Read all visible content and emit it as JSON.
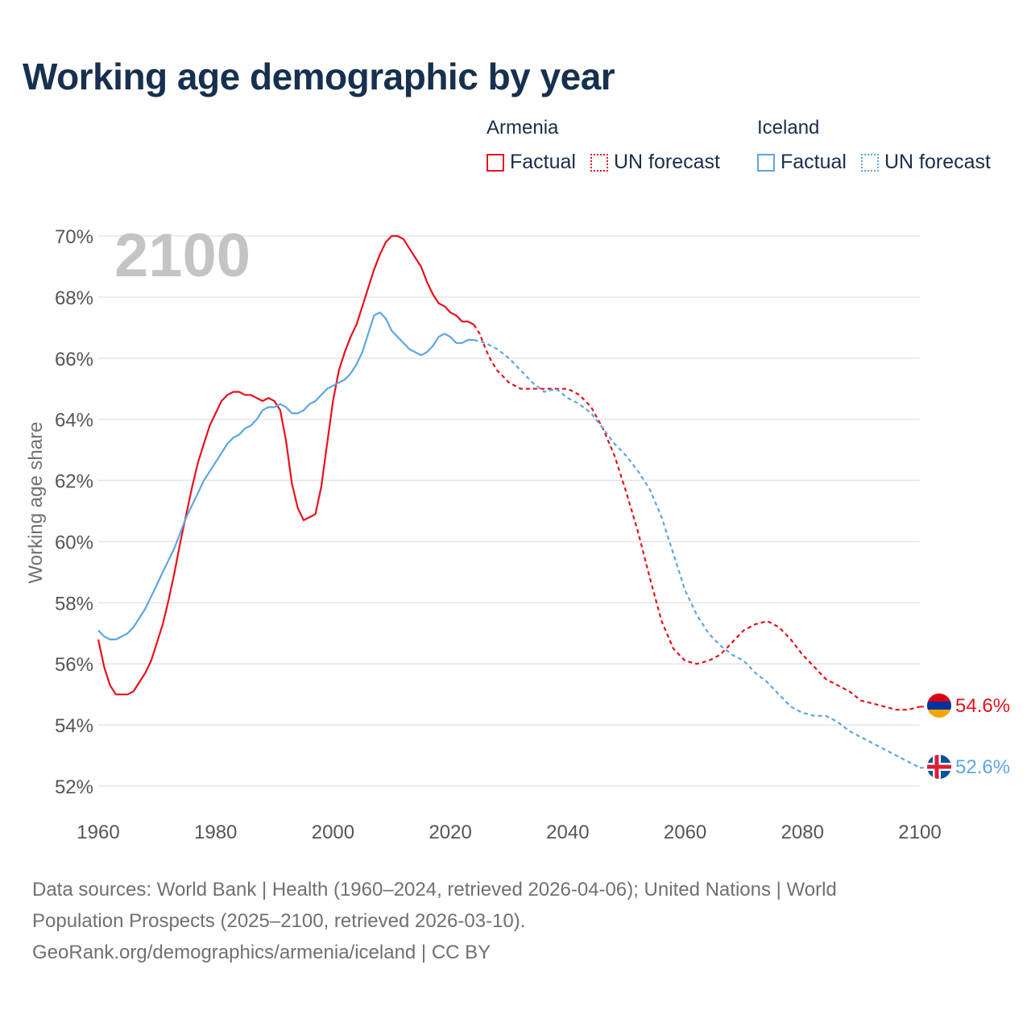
{
  "title": "Working age demographic by year",
  "legend": {
    "groups": [
      {
        "name": "Armenia",
        "items": [
          {
            "label": "Factual",
            "style": "solid"
          },
          {
            "label": "UN forecast",
            "style": "dotted"
          }
        ],
        "color": "#e8111b"
      },
      {
        "name": "Iceland",
        "items": [
          {
            "label": "Factual",
            "style": "solid"
          },
          {
            "label": "UN forecast",
            "style": "dotted"
          }
        ],
        "color": "#5da6e2"
      }
    ]
  },
  "footer": {
    "line1": "Data sources: World Bank | Health (1960–2024, retrieved 2026-04-06); United Nations | World",
    "line2": "Population Prospects (2025–2100, retrieved 2026-03-10).",
    "line3": "GeoRank.org/demographics/armenia/iceland | CC BY"
  },
  "chart_data": {
    "type": "line",
    "title": "Working age demographic by year",
    "year_watermark": "2100",
    "xlabel": "",
    "ylabel": "Working age share",
    "xlim": [
      1960,
      2100
    ],
    "ylim": [
      52,
      70
    ],
    "x_ticks": [
      1960,
      1980,
      2000,
      2020,
      2040,
      2060,
      2080,
      2100
    ],
    "y_ticks": [
      52,
      54,
      56,
      58,
      60,
      62,
      64,
      66,
      68,
      70
    ],
    "y_tick_labels": [
      "52%",
      "54%",
      "56%",
      "58%",
      "60%",
      "62%",
      "64%",
      "66%",
      "68%",
      "70%"
    ],
    "grid": true,
    "forecast_start": 2024,
    "series": [
      {
        "name": "Armenia",
        "color": "#e8111b",
        "end_label": "54.6%",
        "points": [
          [
            1960,
            56.8
          ],
          [
            1961,
            55.9
          ],
          [
            1962,
            55.3
          ],
          [
            1963,
            55.0
          ],
          [
            1964,
            55.0
          ],
          [
            1965,
            55.0
          ],
          [
            1966,
            55.1
          ],
          [
            1967,
            55.4
          ],
          [
            1968,
            55.7
          ],
          [
            1969,
            56.1
          ],
          [
            1970,
            56.7
          ],
          [
            1971,
            57.3
          ],
          [
            1972,
            58.1
          ],
          [
            1973,
            59.0
          ],
          [
            1974,
            60.0
          ],
          [
            1975,
            60.9
          ],
          [
            1976,
            61.8
          ],
          [
            1977,
            62.6
          ],
          [
            1978,
            63.2
          ],
          [
            1979,
            63.8
          ],
          [
            1980,
            64.2
          ],
          [
            1981,
            64.6
          ],
          [
            1982,
            64.8
          ],
          [
            1983,
            64.9
          ],
          [
            1984,
            64.9
          ],
          [
            1985,
            64.8
          ],
          [
            1986,
            64.8
          ],
          [
            1987,
            64.7
          ],
          [
            1988,
            64.6
          ],
          [
            1989,
            64.7
          ],
          [
            1990,
            64.6
          ],
          [
            1991,
            64.3
          ],
          [
            1992,
            63.3
          ],
          [
            1993,
            61.9
          ],
          [
            1994,
            61.1
          ],
          [
            1995,
            60.7
          ],
          [
            1996,
            60.8
          ],
          [
            1997,
            60.9
          ],
          [
            1998,
            61.8
          ],
          [
            1999,
            63.2
          ],
          [
            2000,
            64.6
          ],
          [
            2001,
            65.6
          ],
          [
            2002,
            66.2
          ],
          [
            2003,
            66.7
          ],
          [
            2004,
            67.1
          ],
          [
            2005,
            67.7
          ],
          [
            2006,
            68.3
          ],
          [
            2007,
            68.9
          ],
          [
            2008,
            69.4
          ],
          [
            2009,
            69.8
          ],
          [
            2010,
            70.0
          ],
          [
            2011,
            70.0
          ],
          [
            2012,
            69.9
          ],
          [
            2013,
            69.6
          ],
          [
            2014,
            69.3
          ],
          [
            2015,
            69.0
          ],
          [
            2016,
            68.5
          ],
          [
            2017,
            68.1
          ],
          [
            2018,
            67.8
          ],
          [
            2019,
            67.7
          ],
          [
            2020,
            67.5
          ],
          [
            2021,
            67.4
          ],
          [
            2022,
            67.2
          ],
          [
            2023,
            67.2
          ],
          [
            2024,
            67.1
          ],
          [
            2025,
            66.8
          ],
          [
            2026,
            66.3
          ],
          [
            2027,
            65.9
          ],
          [
            2028,
            65.6
          ],
          [
            2029,
            65.4
          ],
          [
            2030,
            65.2
          ],
          [
            2031,
            65.1
          ],
          [
            2032,
            65.0
          ],
          [
            2034,
            65.0
          ],
          [
            2036,
            65.0
          ],
          [
            2038,
            65.0
          ],
          [
            2040,
            65.0
          ],
          [
            2042,
            64.8
          ],
          [
            2044,
            64.4
          ],
          [
            2046,
            63.7
          ],
          [
            2048,
            62.8
          ],
          [
            2050,
            61.6
          ],
          [
            2052,
            60.3
          ],
          [
            2054,
            58.8
          ],
          [
            2056,
            57.4
          ],
          [
            2058,
            56.5
          ],
          [
            2060,
            56.1
          ],
          [
            2062,
            56.0
          ],
          [
            2064,
            56.1
          ],
          [
            2066,
            56.3
          ],
          [
            2068,
            56.7
          ],
          [
            2070,
            57.1
          ],
          [
            2072,
            57.3
          ],
          [
            2074,
            57.4
          ],
          [
            2076,
            57.2
          ],
          [
            2078,
            56.8
          ],
          [
            2080,
            56.3
          ],
          [
            2082,
            55.9
          ],
          [
            2084,
            55.5
          ],
          [
            2086,
            55.3
          ],
          [
            2088,
            55.1
          ],
          [
            2090,
            54.8
          ],
          [
            2092,
            54.7
          ],
          [
            2094,
            54.6
          ],
          [
            2096,
            54.5
          ],
          [
            2098,
            54.5
          ],
          [
            2100,
            54.6
          ]
        ]
      },
      {
        "name": "Iceland",
        "color": "#5da6e2",
        "end_label": "52.6%",
        "points": [
          [
            1960,
            57.1
          ],
          [
            1961,
            56.9
          ],
          [
            1962,
            56.8
          ],
          [
            1963,
            56.8
          ],
          [
            1964,
            56.9
          ],
          [
            1965,
            57.0
          ],
          [
            1966,
            57.2
          ],
          [
            1967,
            57.5
          ],
          [
            1968,
            57.8
          ],
          [
            1969,
            58.2
          ],
          [
            1970,
            58.6
          ],
          [
            1971,
            59.0
          ],
          [
            1972,
            59.4
          ],
          [
            1973,
            59.8
          ],
          [
            1974,
            60.3
          ],
          [
            1975,
            60.8
          ],
          [
            1976,
            61.2
          ],
          [
            1977,
            61.6
          ],
          [
            1978,
            62.0
          ],
          [
            1979,
            62.3
          ],
          [
            1980,
            62.6
          ],
          [
            1981,
            62.9
          ],
          [
            1982,
            63.2
          ],
          [
            1983,
            63.4
          ],
          [
            1984,
            63.5
          ],
          [
            1985,
            63.7
          ],
          [
            1986,
            63.8
          ],
          [
            1987,
            64.0
          ],
          [
            1988,
            64.3
          ],
          [
            1989,
            64.4
          ],
          [
            1990,
            64.4
          ],
          [
            1991,
            64.5
          ],
          [
            1992,
            64.4
          ],
          [
            1993,
            64.2
          ],
          [
            1994,
            64.2
          ],
          [
            1995,
            64.3
          ],
          [
            1996,
            64.5
          ],
          [
            1997,
            64.6
          ],
          [
            1998,
            64.8
          ],
          [
            1999,
            65.0
          ],
          [
            2000,
            65.1
          ],
          [
            2001,
            65.2
          ],
          [
            2002,
            65.3
          ],
          [
            2003,
            65.5
          ],
          [
            2004,
            65.8
          ],
          [
            2005,
            66.2
          ],
          [
            2006,
            66.8
          ],
          [
            2007,
            67.4
          ],
          [
            2008,
            67.5
          ],
          [
            2009,
            67.3
          ],
          [
            2010,
            66.9
          ],
          [
            2011,
            66.7
          ],
          [
            2012,
            66.5
          ],
          [
            2013,
            66.3
          ],
          [
            2014,
            66.2
          ],
          [
            2015,
            66.1
          ],
          [
            2016,
            66.2
          ],
          [
            2017,
            66.4
          ],
          [
            2018,
            66.7
          ],
          [
            2019,
            66.8
          ],
          [
            2020,
            66.7
          ],
          [
            2021,
            66.5
          ],
          [
            2022,
            66.5
          ],
          [
            2023,
            66.6
          ],
          [
            2024,
            66.6
          ],
          [
            2026,
            66.5
          ],
          [
            2028,
            66.3
          ],
          [
            2030,
            66.0
          ],
          [
            2032,
            65.6
          ],
          [
            2034,
            65.2
          ],
          [
            2036,
            64.9
          ],
          [
            2038,
            65.0
          ],
          [
            2040,
            64.7
          ],
          [
            2042,
            64.5
          ],
          [
            2044,
            64.2
          ],
          [
            2046,
            63.7
          ],
          [
            2048,
            63.2
          ],
          [
            2050,
            62.8
          ],
          [
            2052,
            62.3
          ],
          [
            2054,
            61.7
          ],
          [
            2056,
            60.8
          ],
          [
            2058,
            59.6
          ],
          [
            2060,
            58.4
          ],
          [
            2062,
            57.6
          ],
          [
            2064,
            57.0
          ],
          [
            2066,
            56.6
          ],
          [
            2068,
            56.3
          ],
          [
            2070,
            56.1
          ],
          [
            2072,
            55.7
          ],
          [
            2074,
            55.4
          ],
          [
            2076,
            55.0
          ],
          [
            2078,
            54.6
          ],
          [
            2080,
            54.4
          ],
          [
            2082,
            54.3
          ],
          [
            2084,
            54.3
          ],
          [
            2086,
            54.1
          ],
          [
            2088,
            53.8
          ],
          [
            2090,
            53.6
          ],
          [
            2092,
            53.4
          ],
          [
            2094,
            53.2
          ],
          [
            2096,
            53.0
          ],
          [
            2098,
            52.8
          ],
          [
            2100,
            52.6
          ]
        ]
      }
    ]
  }
}
